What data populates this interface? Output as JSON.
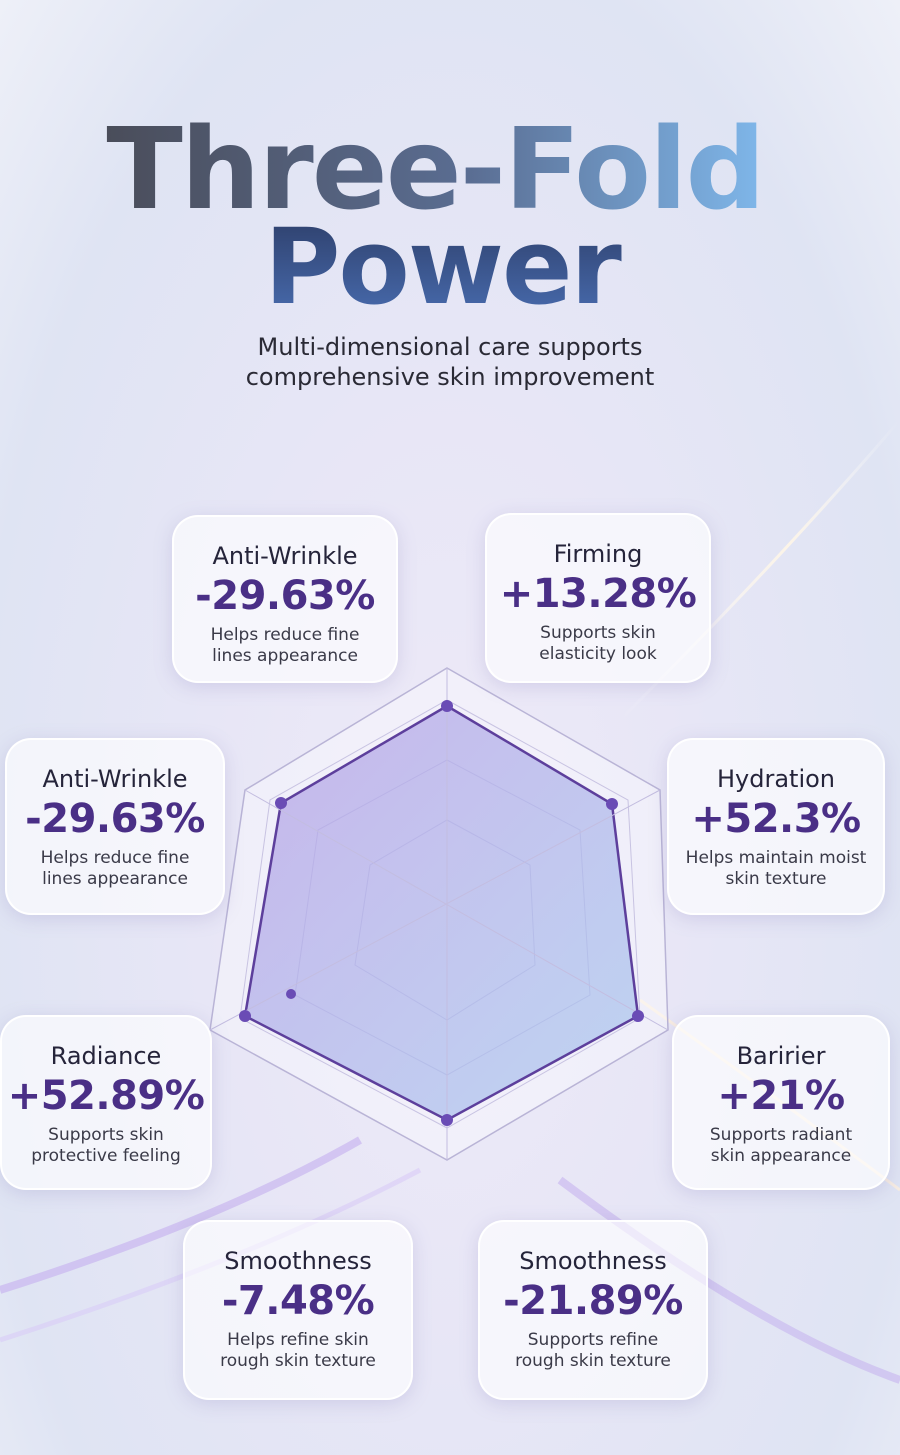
{
  "header": {
    "title": [
      "Three-Fold",
      "Power"
    ],
    "subtitle": [
      "Multi-dimensional care supports",
      "comprehensive skin improvement"
    ]
  },
  "cards": [
    {
      "label": "Anti-Wrinkle",
      "value": "-29.63%",
      "description": [
        "Helps reduce fine",
        "lines appearance"
      ]
    },
    {
      "label": "Firming",
      "value": "+13.28%",
      "description": [
        "Supports skin",
        "elasticity look"
      ]
    },
    {
      "label": "Anti-Wrinkle",
      "value": "-29.63%",
      "description": [
        "Helps reduce fine",
        "lines appearance"
      ]
    },
    {
      "label": "Hydration",
      "value": "+52.3%",
      "description": [
        "Helps maintain moist",
        "skin texture"
      ]
    },
    {
      "label": "Radiance",
      "value": "+52.89%",
      "description": [
        "Supports skin",
        "protective feeling"
      ]
    },
    {
      "label": "Baririer",
      "value": "+21%",
      "description": [
        "Supports radiant",
        "skin appearance"
      ]
    },
    {
      "label": "Smoothness",
      "value": "-7.48%",
      "description": [
        "Helps refine skin",
        "rough skin texture"
      ]
    },
    {
      "label": "Smoothness",
      "value": "-21.89%",
      "description": [
        "Supports refine",
        "rough skin texture"
      ]
    }
  ]
}
